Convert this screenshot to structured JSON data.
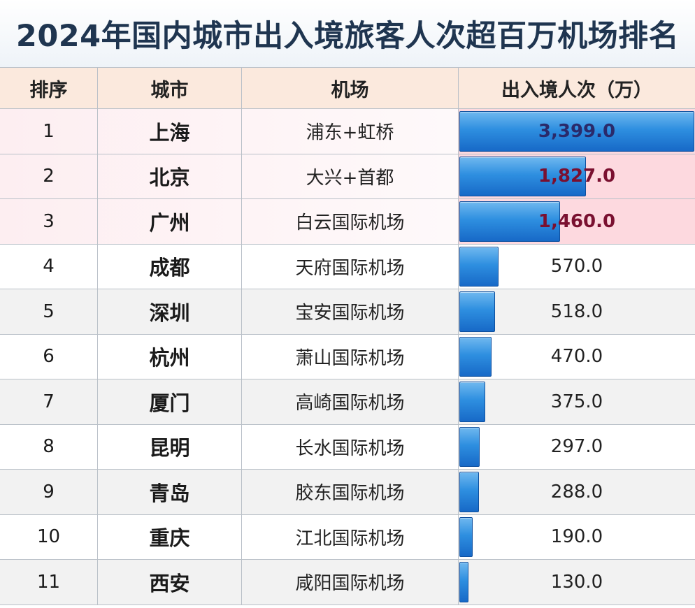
{
  "title": "2024年国内城市出入境旅客人次超百万机场排名",
  "chart_data": {
    "type": "table",
    "title": "2024年国内城市出入境旅客人次超百万机场排名",
    "columns": [
      "排序",
      "城市",
      "机场",
      "出入境人次（万）"
    ],
    "rows": [
      {
        "rank": "1",
        "city": "上海",
        "airport": "浦东+虹桥",
        "value": 3399.0,
        "value_label": "3,399.0"
      },
      {
        "rank": "2",
        "city": "北京",
        "airport": "大兴+首都",
        "value": 1827.0,
        "value_label": "1,827.0"
      },
      {
        "rank": "3",
        "city": "广州",
        "airport": "白云国际机场",
        "value": 1460.0,
        "value_label": "1,460.0"
      },
      {
        "rank": "4",
        "city": "成都",
        "airport": "天府国际机场",
        "value": 570.0,
        "value_label": "570.0"
      },
      {
        "rank": "5",
        "city": "深圳",
        "airport": "宝安国际机场",
        "value": 518.0,
        "value_label": "518.0"
      },
      {
        "rank": "6",
        "city": "杭州",
        "airport": "萧山国际机场",
        "value": 470.0,
        "value_label": "470.0"
      },
      {
        "rank": "7",
        "city": "厦门",
        "airport": "高崎国际机场",
        "value": 375.0,
        "value_label": "375.0"
      },
      {
        "rank": "8",
        "city": "昆明",
        "airport": "长水国际机场",
        "value": 297.0,
        "value_label": "297.0"
      },
      {
        "rank": "9",
        "city": "青岛",
        "airport": "胶东国际机场",
        "value": 288.0,
        "value_label": "288.0"
      },
      {
        "rank": "10",
        "city": "重庆",
        "airport": "江北国际机场",
        "value": 190.0,
        "value_label": "190.0"
      },
      {
        "rank": "11",
        "city": "西安",
        "airport": "咸阳国际机场",
        "value": 130.0,
        "value_label": "130.0"
      }
    ],
    "bar_max": 3399.0,
    "colors": {
      "bar": "#2e8fe0",
      "header_bg": "#fbe9dd",
      "top3_value_bg": "#fdd9df",
      "title": "#1f3550"
    }
  }
}
